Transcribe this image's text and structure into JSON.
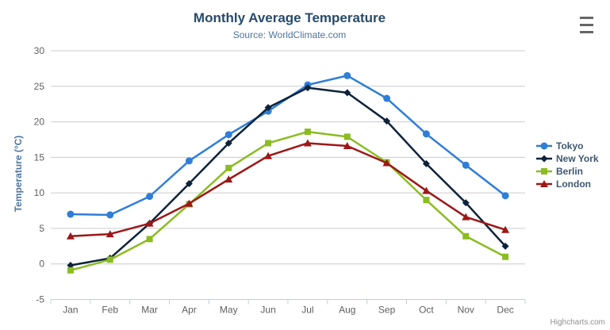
{
  "chart_data": {
    "type": "line",
    "title": "Monthly Average Temperature",
    "subtitle": "Source: WorldClimate.com",
    "categories": [
      "Jan",
      "Feb",
      "Mar",
      "Apr",
      "May",
      "Jun",
      "Jul",
      "Aug",
      "Sep",
      "Oct",
      "Nov",
      "Dec"
    ],
    "series": [
      {
        "name": "Tokyo",
        "color": "#2f7ed8",
        "marker": "circle",
        "values": [
          7.0,
          6.9,
          9.5,
          14.5,
          18.2,
          21.5,
          25.2,
          26.5,
          23.3,
          18.3,
          13.9,
          9.6
        ]
      },
      {
        "name": "New York",
        "color": "#0d233a",
        "marker": "diamond",
        "values": [
          -0.2,
          0.8,
          5.7,
          11.3,
          17.0,
          22.0,
          24.8,
          24.1,
          20.1,
          14.1,
          8.6,
          2.5
        ]
      },
      {
        "name": "Berlin",
        "color": "#8bbc21",
        "marker": "square",
        "values": [
          -0.9,
          0.6,
          3.5,
          8.4,
          13.5,
          17.0,
          18.6,
          17.9,
          14.3,
          9.0,
          3.9,
          1.0
        ]
      },
      {
        "name": "London",
        "color": "#9e1717",
        "marker": "triangle",
        "values": [
          3.9,
          4.2,
          5.7,
          8.5,
          11.9,
          15.2,
          17.0,
          16.6,
          14.2,
          10.3,
          6.6,
          4.8
        ]
      }
    ],
    "xlabel": "",
    "ylabel": "Temperature (°C)",
    "ylim": [
      -5,
      30
    ],
    "tick_interval": 5,
    "grid": true,
    "legend_position": "right"
  },
  "colors": {
    "grid": "#cccccc",
    "axis_line": "#c0d0e0",
    "tick_label": "#606060",
    "title": "#274b6d",
    "subtitle": "#4d759e",
    "legend_text": "#3e576f",
    "credits": "#909090"
  },
  "credits": {
    "label": "Highcharts.com"
  }
}
